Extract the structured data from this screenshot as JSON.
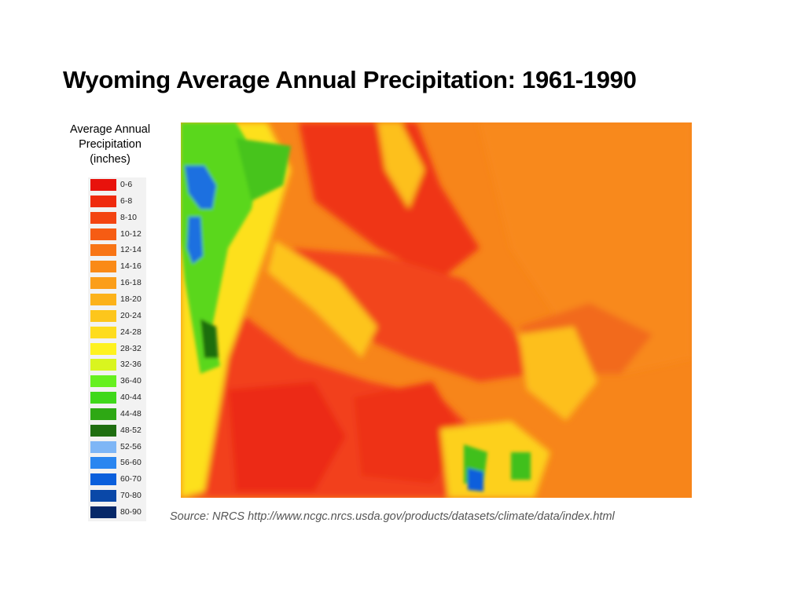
{
  "title": "Wyoming Average Annual Precipitation: 1961-1990",
  "legend": {
    "title_lines": [
      "Average Annual",
      "Precipitation",
      "(inches)"
    ],
    "classes": [
      {
        "label": "0-6",
        "color": "#e8120c"
      },
      {
        "label": "6-8",
        "color": "#ef2a0e"
      },
      {
        "label": "8-10",
        "color": "#f34411"
      },
      {
        "label": "10-12",
        "color": "#f65c13"
      },
      {
        "label": "12-14",
        "color": "#f87516"
      },
      {
        "label": "14-16",
        "color": "#fa8a17"
      },
      {
        "label": "16-18",
        "color": "#fb9e19"
      },
      {
        "label": "18-20",
        "color": "#fcb21a"
      },
      {
        "label": "20-24",
        "color": "#fdc61c"
      },
      {
        "label": "24-28",
        "color": "#fedc1e"
      },
      {
        "label": "28-32",
        "color": "#fef21f"
      },
      {
        "label": "32-36",
        "color": "#d9f51f"
      },
      {
        "label": "36-40",
        "color": "#66f01f"
      },
      {
        "label": "40-44",
        "color": "#3fd81a"
      },
      {
        "label": "44-48",
        "color": "#2ea814"
      },
      {
        "label": "48-52",
        "color": "#1f6e10"
      },
      {
        "label": "52-56",
        "color": "#7eb6f6"
      },
      {
        "label": "56-60",
        "color": "#2a86f0"
      },
      {
        "label": "60-70",
        "color": "#0a5fdc"
      },
      {
        "label": "70-80",
        "color": "#0a48a8"
      },
      {
        "label": "80-90",
        "color": "#062868"
      }
    ]
  },
  "source": "Source: NRCS http://www.ncgc.nrcs.usda.gov/products/datasets/climate/data/index.html"
}
